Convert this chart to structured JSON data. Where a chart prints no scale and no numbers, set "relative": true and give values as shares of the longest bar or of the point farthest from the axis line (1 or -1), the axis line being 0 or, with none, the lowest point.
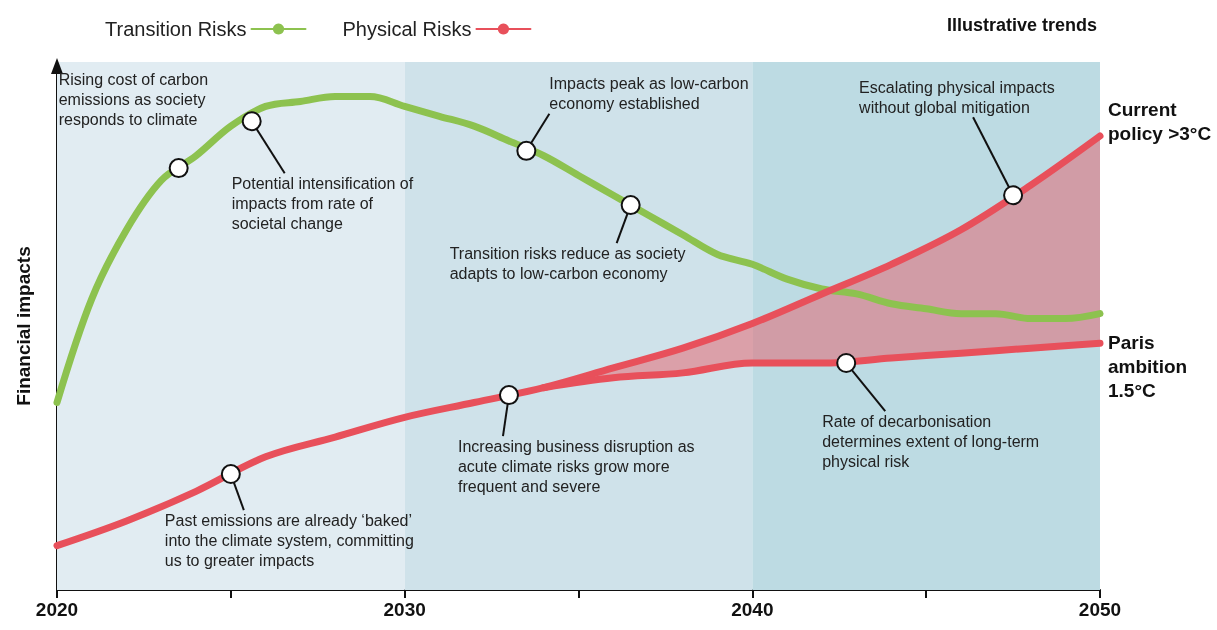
{
  "chart_data": {
    "type": "line",
    "relative": true,
    "ylabel": "Financial impacts",
    "xlim": [
      2020,
      2050
    ],
    "xticks": [
      2020,
      {
        "value": 2025,
        "label": null
      },
      2030,
      {
        "value": 2035,
        "label": null
      },
      2040,
      {
        "value": 2045,
        "label": null
      },
      2050
    ],
    "legend": "top left",
    "grid": false,
    "marker": "none",
    "line_style": "solid",
    "series": [
      {
        "name": "Transition Risks",
        "color": "#8dc24f",
        "x": [
          2020,
          2021,
          2022,
          2023,
          2024,
          2025,
          2026,
          2027,
          2028,
          2029,
          2030,
          2031,
          2032,
          2033,
          2034,
          2035,
          2036,
          2037,
          2038,
          2039,
          2040,
          2041,
          2042,
          2043,
          2044,
          2045,
          2046,
          2047,
          2048,
          2049,
          2050
        ],
        "values": [
          0.38,
          0.59,
          0.73,
          0.83,
          0.88,
          0.94,
          0.98,
          0.99,
          1,
          1,
          0.98,
          0.96,
          0.94,
          0.91,
          0.88,
          0.84,
          0.8,
          0.76,
          0.72,
          0.68,
          0.66,
          0.63,
          0.61,
          0.6,
          0.58,
          0.57,
          0.56,
          0.56,
          0.55,
          0.55,
          0.56
        ]
      },
      {
        "name": "Physical Risks",
        "color": "#e8505b",
        "x": [
          2020,
          2022,
          2024,
          2026,
          2028,
          2030,
          2032,
          2034,
          2036,
          2038,
          2040,
          2042,
          2044,
          2046,
          2048,
          2050
        ],
        "values": [
          0.09,
          0.14,
          0.2,
          0.27,
          0.31,
          0.35,
          0.38,
          0.41,
          0.45,
          0.49,
          0.54,
          0.6,
          0.66,
          0.73,
          0.82,
          0.92
        ],
        "lower": [
          null,
          null,
          null,
          null,
          null,
          null,
          null,
          0.41,
          0.43,
          0.44,
          0.46,
          0.46,
          0.47,
          0.48,
          0.49,
          0.5
        ],
        "upper": [
          null,
          null,
          null,
          null,
          null,
          null,
          null,
          0.41,
          0.45,
          0.49,
          0.54,
          0.6,
          0.66,
          0.73,
          0.82,
          0.92
        ]
      },
      {
        "color": "#e8505b",
        "x": [
          2034,
          2036,
          2038,
          2040,
          2042,
          2044,
          2046,
          2048,
          2050
        ],
        "values": [
          0.41,
          0.43,
          0.44,
          0.46,
          0.46,
          0.47,
          0.48,
          0.49,
          0.5
        ]
      }
    ],
    "bands": [
      {
        "axis": "x",
        "from": 2020,
        "to": 2030,
        "color": "#e1ecf2"
      },
      {
        "axis": "x",
        "from": 2030,
        "to": 2040,
        "color": "#cfe2ea"
      },
      {
        "axis": "x",
        "from": 2040,
        "to": 2050,
        "color": "#bddbe3"
      }
    ],
    "annotations": [
      "Illustrative trends",
      {
        "text": "Rising cost of carbon emissions as society responds to climate",
        "x": 2023.5,
        "y": 0.855
      },
      {
        "text": "Potential intensification of impacts from rate of societal change",
        "x": 2025.6,
        "y": 0.95
      },
      {
        "text": "Impacts peak as low-carbon economy established",
        "x": 2033.5,
        "y": 0.89
      },
      {
        "text": "Transition risks reduce as society adapts to low-carbon economy",
        "x": 2036.5,
        "y": 0.78
      },
      {
        "text": "Escalating physical impacts without global mitigation",
        "x": 2047.5,
        "y": 0.8
      },
      {
        "text": "Rate of decarbonisation determines extent of long-term physical risk",
        "x": 2042.7,
        "y": 0.46
      },
      {
        "text": "Increasing business disruption as acute climate risks grow more frequent and severe",
        "x": 2033,
        "y": 0.395
      },
      {
        "text": "Past emissions are already ‘baked’ into the climate system, committing us to greater impacts",
        "x": 2025,
        "y": 0.235
      },
      {
        "text": "Current policy >3°C",
        "x": 2050,
        "y": 0.92
      },
      {
        "text": "Paris ambition 1.5°C",
        "x": 2050,
        "y": 0.5
      }
    ]
  }
}
